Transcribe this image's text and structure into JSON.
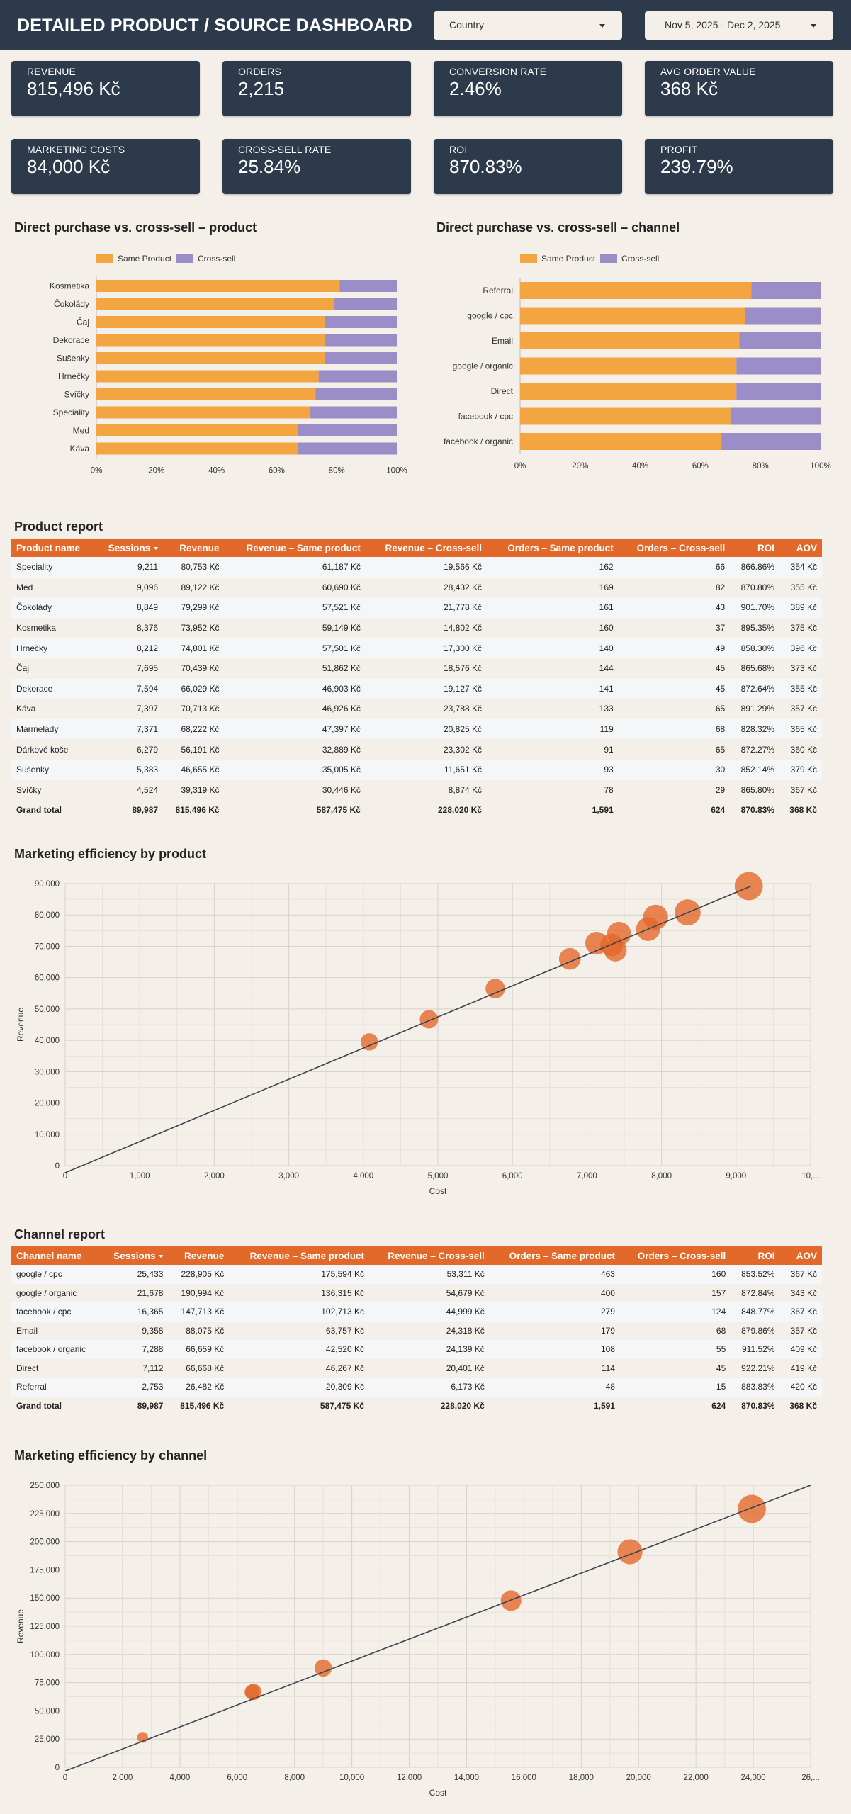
{
  "header": {
    "title": "DETAILED PRODUCT / SOURCE DASHBOARD",
    "country_filter": "Country",
    "date_range": "Nov 5, 2025 - Dec 2, 2025"
  },
  "kpis": [
    {
      "label": "REVENUE",
      "value": "815,496 Kč"
    },
    {
      "label": "ORDERS",
      "value": "2,215"
    },
    {
      "label": "CONVERSION RATE",
      "value": "2.46%"
    },
    {
      "label": "AVG ORDER VALUE",
      "value": "368 Kč"
    },
    {
      "label": "MARKETING COSTS",
      "value": "84,000 Kč"
    },
    {
      "label": "CROSS-SELL RATE",
      "value": "25.84%"
    },
    {
      "label": "ROI",
      "value": "870.83%"
    },
    {
      "label": "PROFIT",
      "value": "239.79%"
    }
  ],
  "colors": {
    "same_product": "#f2a541",
    "cross_sell": "#9b8ec8",
    "accent": "#e3692a",
    "header_bg": "#2d3a4b"
  },
  "chart_data": [
    {
      "type": "bar",
      "orientation": "horizontal",
      "stacked": "percent",
      "title": "Direct purchase vs. cross-sell – product",
      "categories": [
        "Kosmetika",
        "Čokolády",
        "Čaj",
        "Dekorace",
        "Sušenky",
        "Hrnečky",
        "Svíčky",
        "Speciality",
        "Med",
        "Káva"
      ],
      "series": [
        {
          "name": "Same Product",
          "values": [
            81,
            79,
            76,
            76,
            76,
            74,
            73,
            71,
            67,
            67
          ]
        },
        {
          "name": "Cross-sell",
          "values": [
            19,
            21,
            24,
            24,
            24,
            26,
            27,
            29,
            33,
            33
          ]
        }
      ],
      "xticks": [
        "0%",
        "20%",
        "40%",
        "60%",
        "80%",
        "100%"
      ],
      "xlim": [
        0,
        100
      ],
      "legend": "top-left"
    },
    {
      "type": "bar",
      "orientation": "horizontal",
      "stacked": "percent",
      "title": "Direct purchase vs. cross-sell – channel",
      "categories": [
        "Referral",
        "google / cpc",
        "Email",
        "google / organic",
        "Direct",
        "facebook / cpc",
        "facebook / organic"
      ],
      "series": [
        {
          "name": "Same Product",
          "values": [
            77,
            75,
            73,
            72,
            72,
            70,
            67
          ]
        },
        {
          "name": "Cross-sell",
          "values": [
            23,
            25,
            27,
            28,
            28,
            30,
            33
          ]
        }
      ],
      "xticks": [
        "0%",
        "20%",
        "40%",
        "60%",
        "80%",
        "100%"
      ],
      "xlim": [
        0,
        100
      ],
      "legend": "top-left"
    },
    {
      "type": "scatter",
      "title": "Marketing efficiency by product",
      "xlabel": "Cost",
      "ylabel": "Revenue",
      "xlim": [
        0,
        10000
      ],
      "ylim": [
        0,
        90000
      ],
      "xticks": [
        "0",
        "1,000",
        "2,000",
        "3,000",
        "4,000",
        "5,000",
        "6,000",
        "7,000",
        "8,000",
        "9,000",
        "10,..."
      ],
      "yticks": [
        "0",
        "10,000",
        "20,000",
        "30,000",
        "40,000",
        "50,000",
        "60,000",
        "70,000",
        "80,000",
        "90,000"
      ],
      "points": [
        {
          "x": 9170,
          "y": 89200,
          "size": 22
        },
        {
          "x": 8350,
          "y": 80800,
          "size": 20
        },
        {
          "x": 7920,
          "y": 79300,
          "size": 19
        },
        {
          "x": 7820,
          "y": 75500,
          "size": 18
        },
        {
          "x": 7430,
          "y": 74000,
          "size": 18
        },
        {
          "x": 7130,
          "y": 71000,
          "size": 17
        },
        {
          "x": 7330,
          "y": 70400,
          "size": 17
        },
        {
          "x": 7380,
          "y": 68800,
          "size": 17
        },
        {
          "x": 6770,
          "y": 66000,
          "size": 16
        },
        {
          "x": 5770,
          "y": 56500,
          "size": 14
        },
        {
          "x": 4880,
          "y": 46700,
          "size": 13
        },
        {
          "x": 4080,
          "y": 39500,
          "size": 12
        }
      ],
      "trendline": [
        [
          0,
          0
        ],
        [
          9200,
          89200
        ]
      ]
    },
    {
      "type": "scatter",
      "title": "Marketing efficiency by channel",
      "xlabel": "Cost",
      "ylabel": "Revenue",
      "xlim": [
        0,
        26000
      ],
      "ylim": [
        0,
        250000
      ],
      "xticks": [
        "0",
        "2,000",
        "4,000",
        "6,000",
        "8,000",
        "10,000",
        "12,000",
        "14,000",
        "16,000",
        "18,000",
        "20,000",
        "22,000",
        "24,000",
        "26,..."
      ],
      "yticks": [
        "0",
        "25,000",
        "50,000",
        "75,000",
        "100,000",
        "125,000",
        "150,000",
        "175,000",
        "200,000",
        "225,000",
        "250,000"
      ],
      "points": [
        {
          "x": 23950,
          "y": 229000,
          "size": 22
        },
        {
          "x": 19700,
          "y": 191000,
          "size": 19
        },
        {
          "x": 15550,
          "y": 147700,
          "size": 15
        },
        {
          "x": 9000,
          "y": 88000,
          "size": 12
        },
        {
          "x": 6570,
          "y": 66700,
          "size": 11
        },
        {
          "x": 6520,
          "y": 66600,
          "size": 10
        },
        {
          "x": 2700,
          "y": 26500,
          "size": 6
        }
      ],
      "trendline": [
        [
          0,
          3000
        ],
        [
          26000,
          250000
        ]
      ]
    }
  ],
  "product_report": {
    "title": "Product report",
    "columns": [
      "Product name",
      "Sessions",
      "Revenue",
      "Revenue – Same product",
      "Revenue – Cross-sell",
      "Orders – Same product",
      "Orders – Cross-sell",
      "ROI",
      "AOV"
    ],
    "rows": [
      [
        "Speciality",
        "9,211",
        "80,753 Kč",
        "61,187 Kč",
        "19,566 Kč",
        "162",
        "66",
        "866.86%",
        "354 Kč"
      ],
      [
        "Med",
        "9,096",
        "89,122 Kč",
        "60,690 Kč",
        "28,432 Kč",
        "169",
        "82",
        "870.80%",
        "355 Kč"
      ],
      [
        "Čokolády",
        "8,849",
        "79,299 Kč",
        "57,521 Kč",
        "21,778 Kč",
        "161",
        "43",
        "901.70%",
        "389 Kč"
      ],
      [
        "Kosmetika",
        "8,376",
        "73,952 Kč",
        "59,149 Kč",
        "14,802 Kč",
        "160",
        "37",
        "895.35%",
        "375 Kč"
      ],
      [
        "Hrnečky",
        "8,212",
        "74,801 Kč",
        "57,501 Kč",
        "17,300 Kč",
        "140",
        "49",
        "858.30%",
        "396 Kč"
      ],
      [
        "Čaj",
        "7,695",
        "70,439 Kč",
        "51,862 Kč",
        "18,576 Kč",
        "144",
        "45",
        "865.68%",
        "373 Kč"
      ],
      [
        "Dekorace",
        "7,594",
        "66,029 Kč",
        "46,903 Kč",
        "19,127 Kč",
        "141",
        "45",
        "872.64%",
        "355 Kč"
      ],
      [
        "Káva",
        "7,397",
        "70,713 Kč",
        "46,926 Kč",
        "23,788 Kč",
        "133",
        "65",
        "891.29%",
        "357 Kč"
      ],
      [
        "Marmelády",
        "7,371",
        "68,222 Kč",
        "47,397 Kč",
        "20,825 Kč",
        "119",
        "68",
        "828.32%",
        "365 Kč"
      ],
      [
        "Dárkové koše",
        "6,279",
        "56,191 Kč",
        "32,889 Kč",
        "23,302 Kč",
        "91",
        "65",
        "872.27%",
        "360 Kč"
      ],
      [
        "Sušenky",
        "5,383",
        "46,655 Kč",
        "35,005 Kč",
        "11,651 Kč",
        "93",
        "30",
        "852.14%",
        "379 Kč"
      ],
      [
        "Svíčky",
        "4,524",
        "39,319 Kč",
        "30,446 Kč",
        "8,874 Kč",
        "78",
        "29",
        "865.80%",
        "367 Kč"
      ]
    ],
    "total": [
      "Grand total",
      "89,987",
      "815,496 Kč",
      "587,475 Kč",
      "228,020 Kč",
      "1,591",
      "624",
      "870.83%",
      "368 Kč"
    ]
  },
  "channel_report": {
    "title": "Channel report",
    "columns": [
      "Channel name",
      "Sessions",
      "Revenue",
      "Revenue – Same product",
      "Revenue – Cross-sell",
      "Orders – Same product",
      "Orders – Cross-sell",
      "ROI",
      "AOV"
    ],
    "rows": [
      [
        "google / cpc",
        "25,433",
        "228,905 Kč",
        "175,594 Kč",
        "53,311 Kč",
        "463",
        "160",
        "853.52%",
        "367 Kč"
      ],
      [
        "google / organic",
        "21,678",
        "190,994 Kč",
        "136,315 Kč",
        "54,679 Kč",
        "400",
        "157",
        "872.84%",
        "343 Kč"
      ],
      [
        "facebook / cpc",
        "16,365",
        "147,713 Kč",
        "102,713 Kč",
        "44,999 Kč",
        "279",
        "124",
        "848.77%",
        "367 Kč"
      ],
      [
        "Email",
        "9,358",
        "88,075 Kč",
        "63,757 Kč",
        "24,318 Kč",
        "179",
        "68",
        "879.86%",
        "357 Kč"
      ],
      [
        "facebook / organic",
        "7,288",
        "66,659 Kč",
        "42,520 Kč",
        "24,139 Kč",
        "108",
        "55",
        "911.52%",
        "409 Kč"
      ],
      [
        "Direct",
        "7,112",
        "66,668 Kč",
        "46,267 Kč",
        "20,401 Kč",
        "114",
        "45",
        "922.21%",
        "419 Kč"
      ],
      [
        "Referral",
        "2,753",
        "26,482 Kč",
        "20,309 Kč",
        "6,173 Kč",
        "48",
        "15",
        "883.83%",
        "420 Kč"
      ]
    ],
    "total": [
      "Grand total",
      "89,987",
      "815,496 Kč",
      "587,475 Kč",
      "228,020 Kč",
      "1,591",
      "624",
      "870.83%",
      "368 Kč"
    ]
  }
}
